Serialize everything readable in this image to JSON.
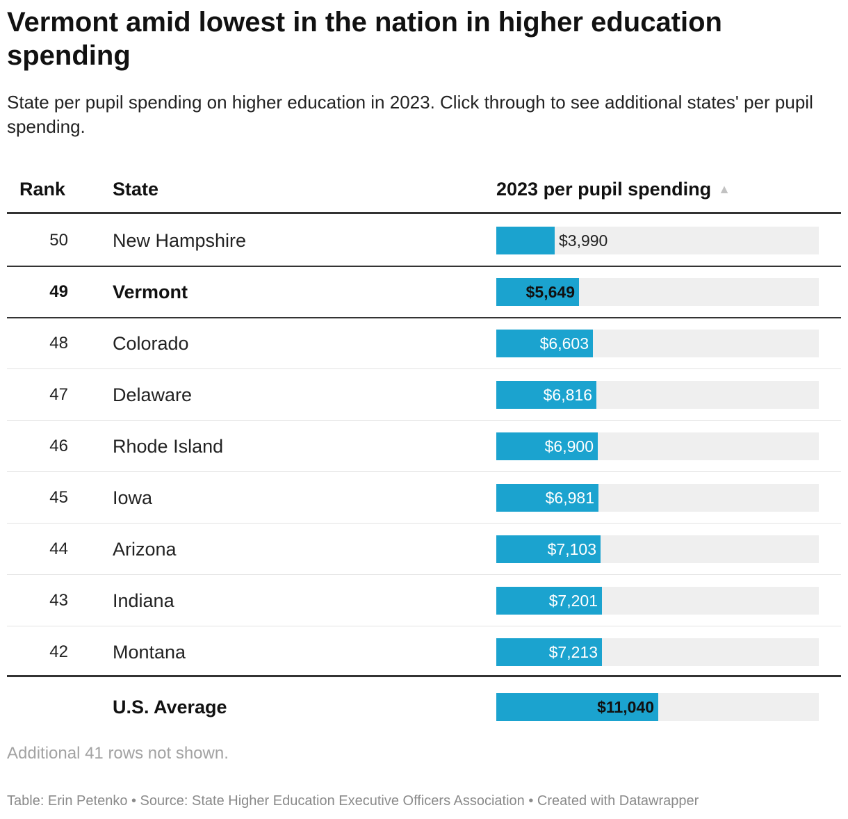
{
  "title": "Vermont amid lowest in the nation in higher education spending",
  "subtitle": "State per pupil spending on higher education in 2023. Click through to see additional states' per pupil spending.",
  "columns": {
    "rank": "Rank",
    "state": "State",
    "spending": "2023 per pupil spending",
    "sort_icon": "▲"
  },
  "colors": {
    "bar": "#1ba3cf",
    "bar_background": "#efefef"
  },
  "note": "Additional 41 rows not shown.",
  "footer": "Table: Erin Petenko • Source: State Higher Education Executive Officers Association • Created with Datawrapper",
  "chart_data": {
    "type": "table",
    "bar_max": 22000,
    "rows": [
      {
        "rank": "50",
        "state": "New Hampshire",
        "value": 3990,
        "label": "$3,990",
        "bold": false
      },
      {
        "rank": "49",
        "state": "Vermont",
        "value": 5649,
        "label": "$5,649",
        "bold": true
      },
      {
        "rank": "48",
        "state": "Colorado",
        "value": 6603,
        "label": "$6,603",
        "bold": false
      },
      {
        "rank": "47",
        "state": "Delaware",
        "value": 6816,
        "label": "$6,816",
        "bold": false
      },
      {
        "rank": "46",
        "state": "Rhode Island",
        "value": 6900,
        "label": "$6,900",
        "bold": false
      },
      {
        "rank": "45",
        "state": "Iowa",
        "value": 6981,
        "label": "$6,981",
        "bold": false
      },
      {
        "rank": "44",
        "state": "Arizona",
        "value": 7103,
        "label": "$7,103",
        "bold": false
      },
      {
        "rank": "43",
        "state": "Indiana",
        "value": 7201,
        "label": "$7,201",
        "bold": false
      },
      {
        "rank": "42",
        "state": "Montana",
        "value": 7213,
        "label": "$7,213",
        "bold": false
      }
    ],
    "summary": {
      "rank": "",
      "state": "U.S. Average",
      "value": 11040,
      "label": "$11,040",
      "bold": true
    }
  }
}
